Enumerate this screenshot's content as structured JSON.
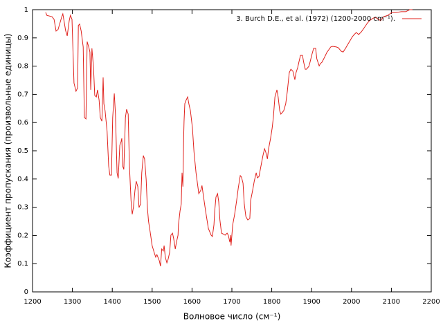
{
  "chart_data": {
    "type": "line",
    "xlabel": "Волновое число (см⁻¹)",
    "ylabel": "Коэффициент пропускания (произвольные единицы)",
    "xlim": [
      1200,
      2200
    ],
    "xticks": [
      1200,
      1300,
      1400,
      1500,
      1600,
      1700,
      1800,
      1900,
      2000,
      2100,
      2200
    ],
    "ylim": [
      0,
      1
    ],
    "yticks": [
      0,
      0.1,
      0.2,
      0.3,
      0.4,
      0.5,
      0.6,
      0.7,
      0.8,
      0.9,
      1
    ],
    "legend": "top-right",
    "series": [
      {
        "name": "3. Burch D.E., et al.  (1972) (1200-2000 cm⁻¹).",
        "color": "#e0201b",
        "x": [
          1233,
          1236,
          1249,
          1254,
          1259,
          1264,
          1273,
          1276,
          1283,
          1287,
          1292,
          1295,
          1299,
          1304,
          1309,
          1313,
          1315,
          1318,
          1322,
          1327,
          1330,
          1334,
          1337,
          1341,
          1344,
          1346,
          1349,
          1353,
          1356,
          1360,
          1363,
          1367,
          1370,
          1374,
          1377,
          1379,
          1382,
          1387,
          1391,
          1394,
          1398,
          1401,
          1405,
          1408,
          1412,
          1415,
          1419,
          1422,
          1424,
          1426,
          1429,
          1433,
          1436,
          1440,
          1443,
          1447,
          1450,
          1453,
          1457,
          1460,
          1464,
          1467,
          1471,
          1474,
          1478,
          1481,
          1485,
          1488,
          1491,
          1495,
          1500,
          1506,
          1509,
          1512,
          1518,
          1521,
          1524,
          1528,
          1530,
          1533,
          1537,
          1540,
          1544,
          1547,
          1551,
          1554,
          1558,
          1561,
          1565,
          1566,
          1570,
          1573,
          1575,
          1577,
          1579,
          1580,
          1582,
          1585,
          1589,
          1592,
          1596,
          1601,
          1605,
          1610,
          1617,
          1622,
          1625,
          1629,
          1634,
          1641,
          1648,
          1651,
          1655,
          1657,
          1660,
          1664,
          1667,
          1670,
          1674,
          1677,
          1683,
          1688,
          1691,
          1695,
          1697,
          1698,
          1702,
          1707,
          1712,
          1716,
          1721,
          1724,
          1728,
          1731,
          1735,
          1740,
          1745,
          1747,
          1752,
          1756,
          1761,
          1764,
          1768,
          1773,
          1778,
          1782,
          1785,
          1789,
          1792,
          1797,
          1801,
          1804,
          1808,
          1813,
          1816,
          1820,
          1823,
          1830,
          1835,
          1839,
          1844,
          1848,
          1853,
          1858,
          1861,
          1865,
          1868,
          1872,
          1877,
          1880,
          1884,
          1887,
          1893,
          1896,
          1901,
          1905,
          1910,
          1913,
          1919,
          1922,
          1926,
          1933,
          1938,
          1943,
          1948,
          1953,
          1962,
          1967,
          1974,
          1979,
          1985,
          1990,
          1995,
          2002,
          2007,
          2012,
          2018,
          2025,
          2032,
          2039,
          2045,
          2052,
          2059,
          2066,
          2073,
          2080,
          2091,
          2101,
          2111,
          2125,
          2136,
          2146,
          2153
        ],
        "values": [
          0.99,
          0.98,
          0.975,
          0.966,
          0.924,
          0.93,
          0.973,
          0.985,
          0.926,
          0.907,
          0.961,
          0.98,
          0.966,
          0.74,
          0.711,
          0.723,
          0.944,
          0.949,
          0.924,
          0.868,
          0.618,
          0.613,
          0.887,
          0.868,
          0.85,
          0.716,
          0.863,
          0.794,
          0.696,
          0.691,
          0.716,
          0.679,
          0.618,
          0.605,
          0.76,
          0.667,
          0.642,
          0.569,
          0.446,
          0.414,
          0.414,
          0.618,
          0.703,
          0.63,
          0.422,
          0.402,
          0.52,
          0.532,
          0.544,
          0.446,
          0.434,
          0.618,
          0.647,
          0.63,
          0.446,
          0.324,
          0.275,
          0.299,
          0.36,
          0.392,
          0.373,
          0.299,
          0.311,
          0.422,
          0.483,
          0.471,
          0.397,
          0.299,
          0.25,
          0.213,
          0.164,
          0.135,
          0.123,
          0.132,
          0.11,
          0.091,
          0.152,
          0.145,
          0.164,
          0.123,
          0.103,
          0.115,
          0.14,
          0.201,
          0.208,
          0.189,
          0.152,
          0.176,
          0.201,
          0.238,
          0.287,
          0.311,
          0.422,
          0.373,
          0.544,
          0.605,
          0.667,
          0.679,
          0.691,
          0.667,
          0.642,
          0.581,
          0.495,
          0.422,
          0.348,
          0.36,
          0.377,
          0.336,
          0.287,
          0.225,
          0.201,
          0.196,
          0.238,
          0.287,
          0.336,
          0.348,
          0.319,
          0.255,
          0.208,
          0.206,
          0.201,
          0.208,
          0.201,
          0.176,
          0.201,
          0.164,
          0.238,
          0.275,
          0.324,
          0.368,
          0.412,
          0.407,
          0.385,
          0.311,
          0.267,
          0.255,
          0.26,
          0.324,
          0.36,
          0.392,
          0.422,
          0.404,
          0.409,
          0.446,
          0.483,
          0.507,
          0.495,
          0.471,
          0.507,
          0.544,
          0.581,
          0.618,
          0.691,
          0.716,
          0.691,
          0.642,
          0.63,
          0.642,
          0.667,
          0.711,
          0.777,
          0.789,
          0.782,
          0.752,
          0.777,
          0.794,
          0.814,
          0.838,
          0.838,
          0.814,
          0.789,
          0.789,
          0.799,
          0.814,
          0.843,
          0.863,
          0.863,
          0.826,
          0.801,
          0.809,
          0.814,
          0.833,
          0.848,
          0.858,
          0.868,
          0.87,
          0.868,
          0.865,
          0.853,
          0.85,
          0.863,
          0.875,
          0.887,
          0.904,
          0.912,
          0.919,
          0.912,
          0.922,
          0.936,
          0.951,
          0.961,
          0.968,
          0.973,
          0.968,
          0.961,
          0.975,
          0.98,
          0.99,
          0.99,
          0.993,
          0.993,
          1.0,
          1.0
        ]
      }
    ]
  }
}
